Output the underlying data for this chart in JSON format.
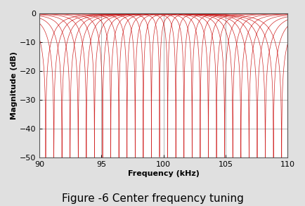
{
  "title": "Figure -6 Center frequency tuning",
  "xlabel": "Frequency (kHz)",
  "ylabel": "Magnitude (dB)",
  "xlim": [
    90,
    110
  ],
  "ylim": [
    -50,
    0
  ],
  "xticks": [
    90,
    95,
    100,
    105,
    110
  ],
  "yticks": [
    0,
    -10,
    -20,
    -30,
    -40,
    -50
  ],
  "line_color": "#cc1111",
  "bg_color": "#ffffff",
  "grid_color": "#555555",
  "num_filters": 30,
  "f_center_start": 90.5,
  "f_center_end": 109.5,
  "f_start": 90.0,
  "f_end": 110.0,
  "Q_factor": 35,
  "depth_scale": 1.0,
  "title_fontsize": 11,
  "axis_label_fontsize": 8,
  "tick_fontsize": 8
}
